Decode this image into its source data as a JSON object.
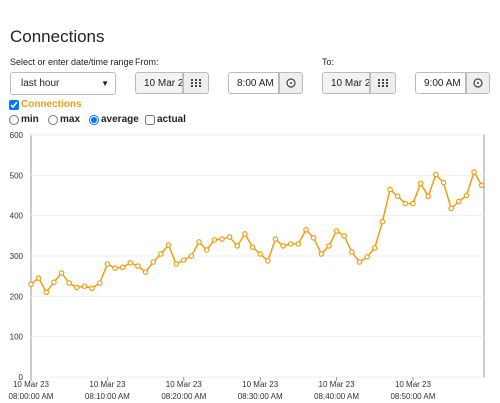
{
  "header": {
    "title": "Connections"
  },
  "range": {
    "label": "Select or enter date/time range",
    "value": "last hour"
  },
  "from": {
    "label": "From:",
    "date": "10 Mar 2",
    "time": "8:00 AM"
  },
  "to": {
    "label": "To:",
    "date": "10 Mar 2",
    "time": "9:00 AM"
  },
  "series_toggle": {
    "label": "Connections",
    "checked": true
  },
  "modes": [
    {
      "label": "min",
      "kind": "radio",
      "checked": false
    },
    {
      "label": "max",
      "kind": "radio",
      "checked": false
    },
    {
      "label": "average",
      "kind": "radio",
      "checked": true
    },
    {
      "label": "actual",
      "kind": "checkbox",
      "checked": false
    }
  ],
  "chart": {
    "type": "line",
    "color": "#f39c12",
    "x": [
      0,
      1,
      2,
      3,
      4,
      5,
      6,
      7,
      8,
      9,
      10,
      11,
      12,
      13,
      14,
      15,
      16,
      17,
      18,
      19,
      20,
      21,
      22,
      23,
      24,
      25,
      26,
      27,
      28,
      29,
      30,
      31,
      32,
      33,
      34,
      35,
      36,
      37,
      38,
      39,
      40,
      41,
      42,
      43,
      44,
      45,
      46,
      47,
      48,
      49,
      50,
      51,
      52,
      53,
      54,
      55,
      56,
      57,
      58,
      59
    ],
    "values": [
      230,
      245,
      210,
      235,
      258,
      233,
      222,
      225,
      220,
      233,
      280,
      270,
      272,
      283,
      275,
      260,
      285,
      305,
      327,
      280,
      290,
      300,
      335,
      315,
      340,
      342,
      347,
      325,
      355,
      322,
      305,
      288,
      342,
      325,
      330,
      330,
      365,
      345,
      305,
      325,
      362,
      350,
      310,
      285,
      298,
      320,
      385,
      465,
      448,
      430,
      430,
      480,
      448,
      502,
      482,
      418,
      435,
      450,
      508,
      475
    ],
    "xlim": [
      0,
      59.3
    ],
    "ylim": [
      0,
      600
    ],
    "yticks": [
      0,
      100,
      200,
      300,
      400,
      500,
      600
    ],
    "xticks": [
      {
        "value": 0,
        "date": "10 Mar 23",
        "time": "08:00:00 AM"
      },
      {
        "value": 10,
        "date": "10 Mar 23",
        "time": "08:10:00 AM"
      },
      {
        "value": 20,
        "date": "10 Mar 23",
        "time": "08:20:00 AM"
      },
      {
        "value": 30,
        "date": "10 Mar 23",
        "time": "08:30:00 AM"
      },
      {
        "value": 40,
        "date": "10 Mar 23",
        "time": "08:40:00 AM"
      },
      {
        "value": 50,
        "date": "10 Mar 23",
        "time": "08:50:00 AM"
      }
    ],
    "grid": true
  }
}
